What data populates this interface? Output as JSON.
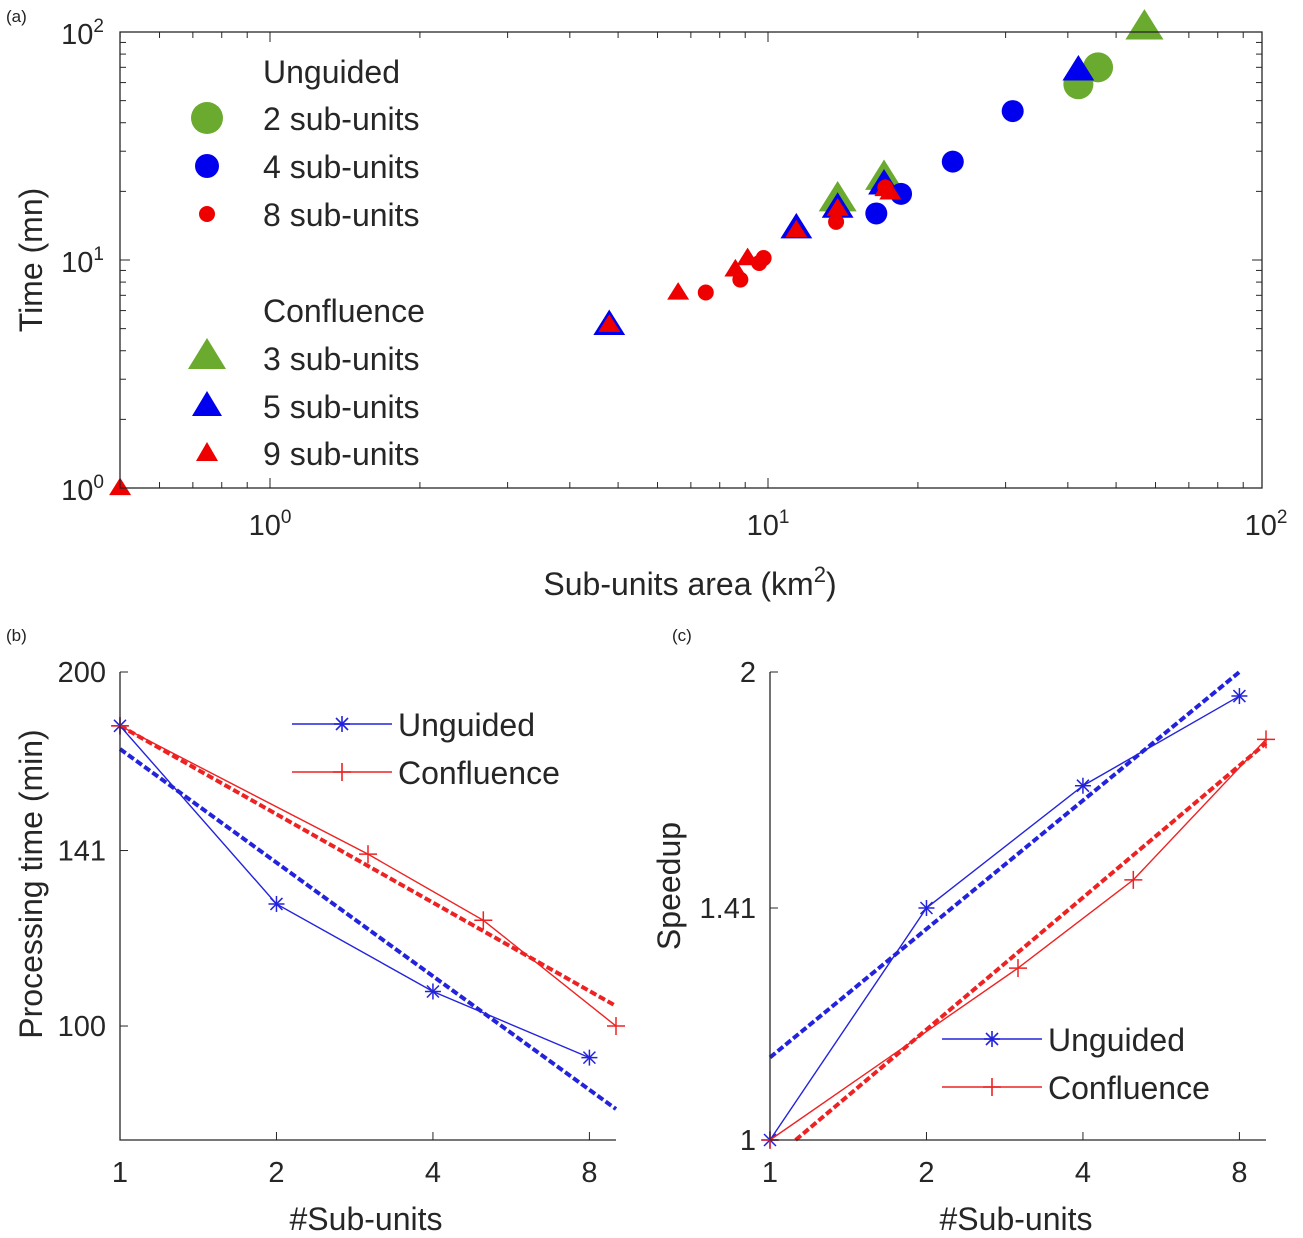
{
  "chart_data": [
    {
      "panel": "(a)",
      "type": "scatter",
      "xlabel": "Sub-units area (km",
      "xlabel_sup": "2",
      "xlabel_end": ")",
      "ylabel": "Time (mn)",
      "xscale": "log",
      "yscale": "log",
      "xlim": [
        0.5,
        100
      ],
      "ylim": [
        1,
        100
      ],
      "x_ticks": [
        {
          "base": "10",
          "exp": "0",
          "value": 1
        },
        {
          "base": "10",
          "exp": "1",
          "value": 10
        },
        {
          "base": "10",
          "exp": "2",
          "value": 100
        }
      ],
      "y_ticks": [
        {
          "base": "10",
          "exp": "0",
          "value": 1
        },
        {
          "base": "10",
          "exp": "1",
          "value": 10
        },
        {
          "base": "10",
          "exp": "2",
          "value": 100
        }
      ],
      "legend": {
        "groups": [
          {
            "title": "Unguided",
            "entries": [
              {
                "label": "2 sub-units",
                "marker": "circle",
                "color": "#6aaa2e",
                "size": "large"
              },
              {
                "label": "4 sub-units",
                "marker": "circle",
                "color": "#0000ee",
                "size": "medium"
              },
              {
                "label": "8 sub-units",
                "marker": "circle",
                "color": "#ee0000",
                "size": "small"
              }
            ]
          },
          {
            "title": "Confluence",
            "entries": [
              {
                "label": "3 sub-units",
                "marker": "triangle",
                "color": "#6aaa2e",
                "size": "large"
              },
              {
                "label": "5 sub-units",
                "marker": "triangle",
                "color": "#0000ee",
                "size": "medium"
              },
              {
                "label": "9 sub-units",
                "marker": "triangle",
                "color": "#ee0000",
                "size": "small"
              }
            ]
          }
        ]
      },
      "series": [
        {
          "name": "2 sub-units",
          "marker": "circle",
          "color": "#6aaa2e",
          "size": "large",
          "points": [
            [
              42,
              59
            ],
            [
              46,
              70
            ]
          ]
        },
        {
          "name": "4 sub-units",
          "marker": "circle",
          "color": "#0000ee",
          "size": "medium",
          "points": [
            [
              18.5,
              19.5
            ],
            [
              16.5,
              16
            ],
            [
              23.5,
              27
            ],
            [
              31,
              45
            ]
          ]
        },
        {
          "name": "8 sub-units",
          "marker": "circle",
          "color": "#ee0000",
          "size": "small",
          "points": [
            [
              7.5,
              7.2
            ],
            [
              8.8,
              8.2
            ],
            [
              9.6,
              9.7
            ],
            [
              9.8,
              10.2
            ],
            [
              13.7,
              14.7
            ],
            [
              17.2,
              20.8
            ]
          ]
        },
        {
          "name": "3 sub-units",
          "marker": "triangle",
          "color": "#6aaa2e",
          "size": "large",
          "points": [
            [
              13.8,
              18.5
            ],
            [
              17.1,
              23
            ],
            [
              57,
              105
            ]
          ]
        },
        {
          "name": "5 sub-units",
          "marker": "triangle",
          "color": "#0000ee",
          "size": "medium",
          "points": [
            [
              4.8,
              5.2
            ],
            [
              11.4,
              13.8
            ],
            [
              13.8,
              17
            ],
            [
              17.1,
              21.5
            ],
            [
              42,
              68
            ]
          ]
        },
        {
          "name": "9 sub-units",
          "marker": "triangle",
          "color": "#ee0000",
          "size": "small",
          "points": [
            [
              0.5,
              1.0
            ],
            [
              4.8,
              5.2
            ],
            [
              6.6,
              7.2
            ],
            [
              8.6,
              9.1
            ],
            [
              9.1,
              10.2
            ],
            [
              11.4,
              13.5
            ],
            [
              13.8,
              16.8
            ],
            [
              17.2,
              20.5
            ],
            [
              17.6,
              19.8
            ]
          ]
        }
      ]
    },
    {
      "panel": "(b)",
      "type": "line",
      "xlabel": "#Sub-units",
      "ylabel": "Processing time (min)",
      "xscale": "log2",
      "yscale": "log",
      "xlim": [
        1,
        9
      ],
      "ylim": [
        80,
        200
      ],
      "x_tick_labels": [
        "1",
        "2",
        "4",
        "8"
      ],
      "y_tick_labels": [
        "100",
        "141",
        "200"
      ],
      "legend": {
        "position": "top-right"
      },
      "series": [
        {
          "name": "Unguided",
          "color": "#2323dd",
          "marker": "*",
          "x": [
            1,
            2,
            4,
            8
          ],
          "y": [
            180,
            127,
            107,
            94
          ]
        },
        {
          "name": "Confluence",
          "color": "#ee2222",
          "marker": "+",
          "x": [
            1,
            3,
            5,
            9
          ],
          "y": [
            180,
            140,
            123,
            100
          ]
        }
      ],
      "fits": [
        {
          "color": "#2323dd",
          "style": "dashed",
          "x": [
            1,
            9
          ],
          "y": [
            172,
            85
          ]
        },
        {
          "color": "#ee2222",
          "style": "dashed",
          "x": [
            1,
            9
          ],
          "y": [
            180,
            104
          ]
        }
      ]
    },
    {
      "panel": "(c)",
      "type": "line",
      "xlabel": "#Sub-units",
      "ylabel": "Speedup",
      "xscale": "log2",
      "yscale": "log",
      "xlim": [
        1,
        9
      ],
      "ylim": [
        1,
        2
      ],
      "x_tick_labels": [
        "1",
        "2",
        "4",
        "8"
      ],
      "y_tick_labels": [
        "1",
        "1.41",
        "2"
      ],
      "legend": {
        "position": "bottom-right"
      },
      "series": [
        {
          "name": "Unguided",
          "color": "#2323dd",
          "marker": "*",
          "x": [
            1,
            2,
            4,
            8
          ],
          "y": [
            1.0,
            1.41,
            1.69,
            1.93
          ]
        },
        {
          "name": "Confluence",
          "color": "#ee2222",
          "marker": "+",
          "x": [
            1,
            3,
            5,
            9
          ],
          "y": [
            1.0,
            1.29,
            1.47,
            1.81
          ]
        }
      ],
      "fits": [
        {
          "color": "#2323dd",
          "style": "dashed",
          "x": [
            1,
            8
          ],
          "y": [
            1.13,
            2.0
          ]
        },
        {
          "color": "#ee2222",
          "style": "dashed",
          "x": [
            1.12,
            9
          ],
          "y": [
            1.0,
            1.8
          ]
        }
      ]
    }
  ]
}
